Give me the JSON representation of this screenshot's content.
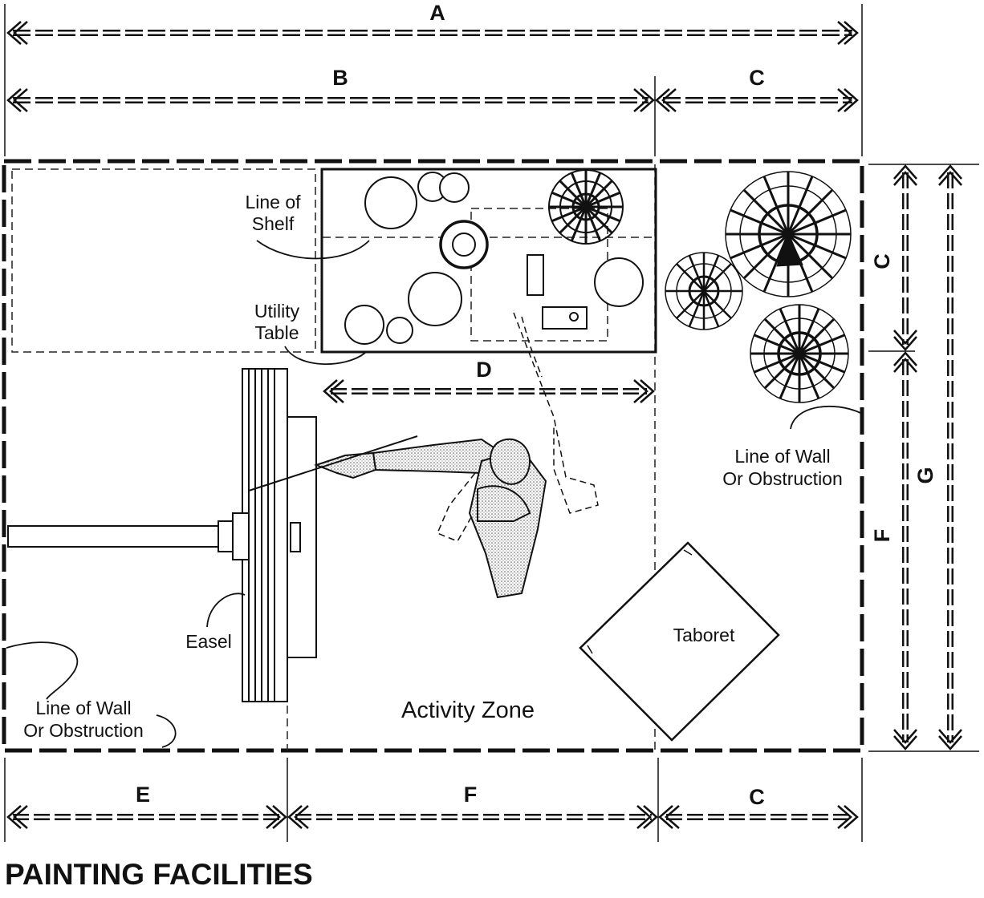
{
  "title": "PAINTING FACILITIES",
  "dimensions": {
    "a": "A",
    "b": "B",
    "c_top": "C",
    "c_right": "C",
    "d": "D",
    "e": "E",
    "f_bottom": "F",
    "c_bottom": "C",
    "f_right": "F",
    "g": "G"
  },
  "labels": {
    "shelf_line1": "Line of",
    "shelf_line2": "Shelf",
    "table_line1": "Utility",
    "table_line2": "Table",
    "wall_right_line1": "Line of Wall",
    "wall_right_line2": "Or Obstruction",
    "wall_left_line1": "Line of Wall",
    "wall_left_line2": "Or Obstruction",
    "easel": "Easel",
    "taboret": "Taboret",
    "activity_zone": "Activity Zone"
  }
}
